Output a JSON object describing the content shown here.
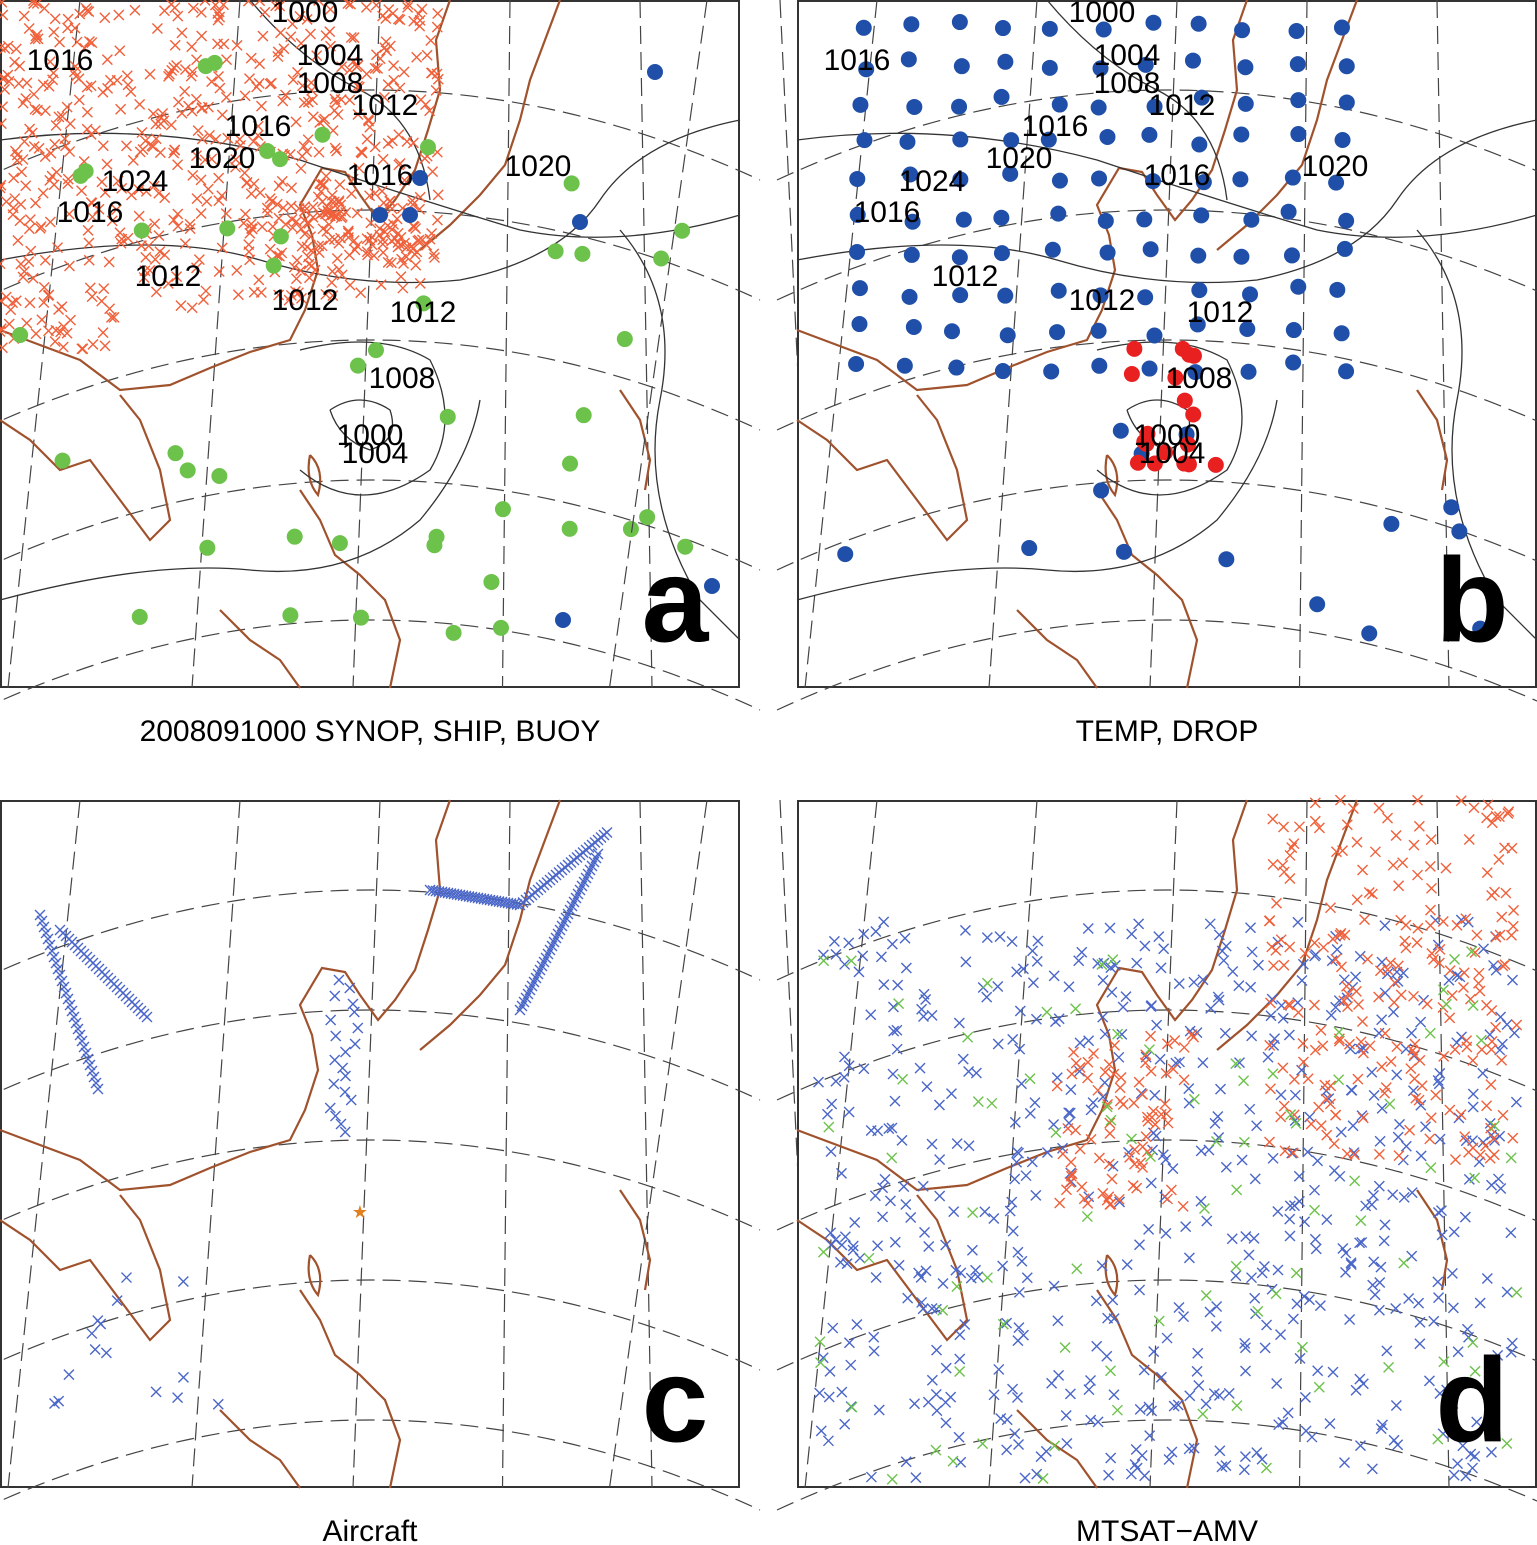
{
  "panels": [
    {
      "letter": "a",
      "caption": "2008091000 SYNOP, SHIP, BUOY",
      "isobar_labels": [
        "1000",
        "1004",
        "1008",
        "1012",
        "1016",
        "1016",
        "1020",
        "1024",
        "1016",
        "1012",
        "1012",
        "1012",
        "1008",
        "1000",
        "1004",
        "1016",
        "1020"
      ]
    },
    {
      "letter": "b",
      "caption": "TEMP, DROP",
      "isobar_labels": [
        "1000",
        "1004",
        "1008",
        "1012",
        "1016",
        "1016",
        "1020",
        "1024",
        "1016",
        "1012",
        "1012",
        "1012",
        "1008",
        "1000",
        "1004",
        "1016",
        "1020"
      ]
    },
    {
      "letter": "c",
      "caption": "Aircraft",
      "isobar_labels": []
    },
    {
      "letter": "d",
      "caption": "MTSAT−AMV",
      "isobar_labels": []
    }
  ]
}
